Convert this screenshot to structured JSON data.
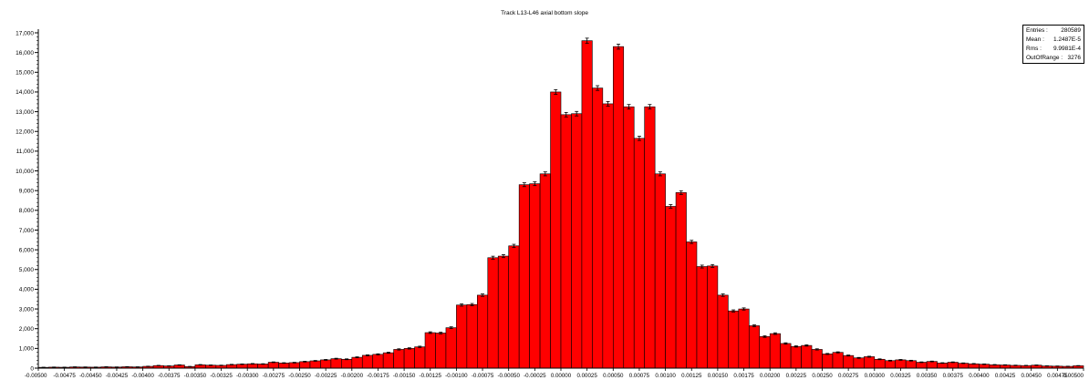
{
  "chart_data": {
    "type": "bar",
    "title": "Track L13-L46 axial bottom slope",
    "xlabel": "",
    "ylabel": "",
    "xlim": [
      -0.005,
      0.005
    ],
    "ylim": [
      0,
      17000
    ],
    "grid": false,
    "bar_color": "#ff0000",
    "bin_edges_start": -0.005,
    "bin_width": 0.0001,
    "y_ticks": [
      "0",
      "1,000",
      "2,000",
      "3,000",
      "4,000",
      "5,000",
      "6,000",
      "7,000",
      "8,000",
      "9,000",
      "10,000",
      "11,000",
      "12,000",
      "13,000",
      "14,000",
      "15,000",
      "16,000",
      "17,000"
    ],
    "x_ticks": [
      "-0.00500",
      "-0.00475",
      "-0.00450",
      "-0.00425",
      "-0.00400",
      "-0.00375",
      "-0.00350",
      "-0.00325",
      "-0.00300",
      "-0.00275",
      "-0.00250",
      "-0.00225",
      "-0.00200",
      "-0.00175",
      "-0.00150",
      "-0.00125",
      "-0.00100",
      "-0.00075",
      "-0.00050",
      "-0.00025",
      "0.00000",
      "0.00025",
      "0.00050",
      "0.00075",
      "0.00100",
      "0.00125",
      "0.00150",
      "0.00175",
      "0.00200",
      "0.00225",
      "0.00250",
      "0.00275",
      "0.00300",
      "0.00325",
      "0.00350",
      "0.00375",
      "0.00400",
      "0.00425",
      "0.00450",
      "0.00475",
      "0.00500"
    ],
    "values": [
      40,
      50,
      45,
      60,
      55,
      50,
      65,
      55,
      70,
      60,
      90,
      130,
      110,
      160,
      80,
      170,
      150,
      140,
      180,
      200,
      220,
      210,
      300,
      260,
      280,
      330,
      370,
      420,
      480,
      450,
      550,
      650,
      700,
      780,
      950,
      1000,
      1080,
      1800,
      1780,
      2050,
      3200,
      3220,
      3700,
      5600,
      5680,
      6200,
      9300,
      9350,
      9850,
      14000,
      12850,
      12900,
      16600,
      14200,
      13400,
      16300,
      13250,
      11650,
      13250,
      9850,
      8200,
      8900,
      6400,
      5150,
      5180,
      3700,
      2900,
      3000,
      2150,
      1600,
      1750,
      1250,
      1100,
      1150,
      950,
      720,
      800,
      640,
      520,
      580,
      450,
      380,
      420,
      380,
      300,
      340,
      260,
      300,
      250,
      220,
      200,
      170,
      160,
      140,
      130,
      150,
      110,
      100,
      90,
      120
    ]
  },
  "stats": [
    {
      "label": "Entries :",
      "value": "280589"
    },
    {
      "label": "Mean :",
      "value": "1.2487E-5"
    },
    {
      "label": "Rms :",
      "value": "9.9981E-4"
    },
    {
      "label": "OutOfRange :",
      "value": "3276"
    }
  ]
}
